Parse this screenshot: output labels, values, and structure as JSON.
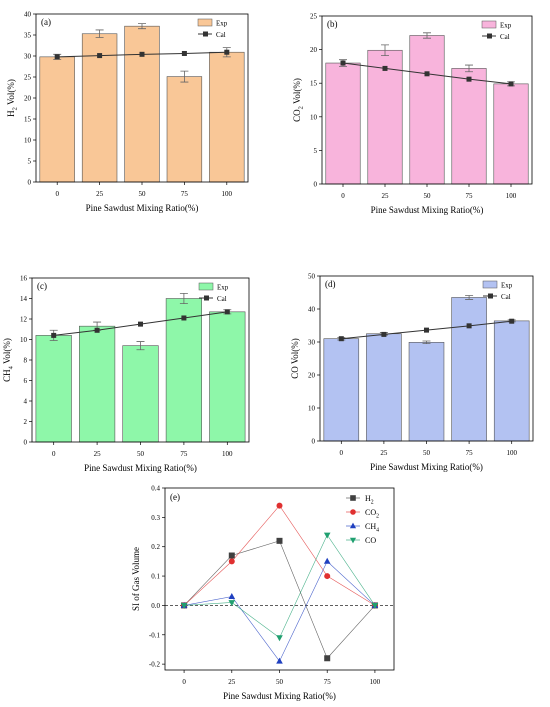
{
  "chart_data": [
    {
      "panel": "(a)",
      "type": "bar",
      "categories": [
        "0",
        "25",
        "50",
        "75",
        "100"
      ],
      "series": [
        {
          "name": "Exp",
          "kind": "bar",
          "values": [
            29.8,
            35.3,
            37.1,
            25.1,
            30.9
          ],
          "errors": [
            0.6,
            0.9,
            0.6,
            1.3,
            1.1
          ]
        },
        {
          "name": "Cal",
          "kind": "line",
          "values": [
            29.8,
            30.1,
            30.4,
            30.6,
            30.9
          ]
        }
      ],
      "ylabel_main": "H",
      "ylabel_sub": "2",
      "ylabel_rest": " Vol(%)",
      "xlabel": "Pine Sawdust Mixing Ratio(%)",
      "ylim": [
        0,
        40
      ],
      "yticks": [
        0,
        5,
        10,
        15,
        20,
        25,
        30,
        35,
        40
      ],
      "bar_color": "#f9c797",
      "legend": "top-right"
    },
    {
      "panel": "(b)",
      "type": "bar",
      "categories": [
        "0",
        "25",
        "50",
        "75",
        "100"
      ],
      "series": [
        {
          "name": "Exp",
          "kind": "bar",
          "values": [
            18.0,
            19.9,
            22.1,
            17.2,
            14.9
          ],
          "errors": [
            0.5,
            0.8,
            0.4,
            0.5,
            0.3
          ]
        },
        {
          "name": "Cal",
          "kind": "line",
          "values": [
            18.0,
            17.2,
            16.4,
            15.6,
            14.9
          ]
        }
      ],
      "ylabel_main": "CO",
      "ylabel_sub": "2",
      "ylabel_rest": " Vol(%)",
      "xlabel": "Pine Sawdust Mixing Ratio(%)",
      "ylim": [
        0,
        25
      ],
      "yticks": [
        0,
        5,
        10,
        15,
        20,
        25
      ],
      "bar_color": "#f8b4dc",
      "legend": "top-right"
    },
    {
      "panel": "(c)",
      "type": "bar",
      "categories": [
        "0",
        "25",
        "50",
        "75",
        "100"
      ],
      "series": [
        {
          "name": "Exp",
          "kind": "bar",
          "values": [
            10.4,
            11.3,
            9.4,
            14.0,
            12.7
          ],
          "errors": [
            0.5,
            0.4,
            0.4,
            0.5,
            0.2
          ]
        },
        {
          "name": "Cal",
          "kind": "line",
          "values": [
            10.4,
            10.9,
            11.5,
            12.1,
            12.7
          ]
        }
      ],
      "ylabel_main": "CH",
      "ylabel_sub": "4",
      "ylabel_rest": " Vol(%)",
      "xlabel": "Pine Sawdust Mixing Ratio(%)",
      "ylim": [
        0,
        16
      ],
      "yticks": [
        0,
        2,
        4,
        6,
        8,
        10,
        12,
        14,
        16
      ],
      "bar_color": "#8ef7a9",
      "legend": "top-right"
    },
    {
      "panel": "(d)",
      "type": "bar",
      "categories": [
        "0",
        "25",
        "50",
        "75",
        "100"
      ],
      "series": [
        {
          "name": "Exp",
          "kind": "bar",
          "values": [
            31.0,
            32.5,
            29.9,
            43.5,
            36.4
          ],
          "errors": [
            0.4,
            0.4,
            0.4,
            0.6,
            0.3
          ]
        },
        {
          "name": "Cal",
          "kind": "line",
          "values": [
            31.0,
            32.3,
            33.6,
            34.9,
            36.3
          ]
        }
      ],
      "ylabel_main": "CO",
      "ylabel_sub": "",
      "ylabel_rest": " Vol(%)",
      "xlabel": "Pine Sawdust Mixing Ratio(%)",
      "ylim": [
        0,
        50
      ],
      "yticks": [
        0,
        10,
        20,
        30,
        40,
        50
      ],
      "bar_color": "#b3c2f2",
      "legend": "top-right"
    },
    {
      "panel": "(e)",
      "type": "line",
      "x": [
        0,
        25,
        50,
        75,
        100
      ],
      "series": [
        {
          "main": "H",
          "sub": "2",
          "color": "#404040",
          "marker": "square",
          "values": [
            0,
            0.17,
            0.22,
            -0.18,
            0
          ]
        },
        {
          "main": "CO",
          "sub": "2",
          "color": "#e03030",
          "marker": "circle",
          "values": [
            0,
            0.15,
            0.34,
            0.1,
            0
          ]
        },
        {
          "main": "CH",
          "sub": "4",
          "color": "#2040c0",
          "marker": "triangle-up",
          "values": [
            0,
            0.03,
            -0.19,
            0.15,
            0
          ]
        },
        {
          "main": "CO",
          "sub": "",
          "color": "#20a070",
          "marker": "triangle-down",
          "values": [
            0,
            0.01,
            -0.11,
            0.24,
            0
          ]
        }
      ],
      "ylabel": "SI of Gas Volume",
      "xlabel": "Pine Sawdust Mixing Ratio(%)",
      "xlim": [
        -10,
        110
      ],
      "xticks": [
        0,
        25,
        50,
        75,
        100
      ],
      "ylim": [
        -0.22,
        0.4
      ],
      "yticks": [
        -0.2,
        -0.1,
        0.0,
        0.1,
        0.2,
        0.3,
        0.4
      ],
      "ytick_labels": [
        "-0.2",
        "-0.1",
        "0.0",
        "0.1",
        "0.2",
        "0.3",
        "0.4"
      ],
      "reference_line": 0,
      "legend": "top-right"
    }
  ]
}
